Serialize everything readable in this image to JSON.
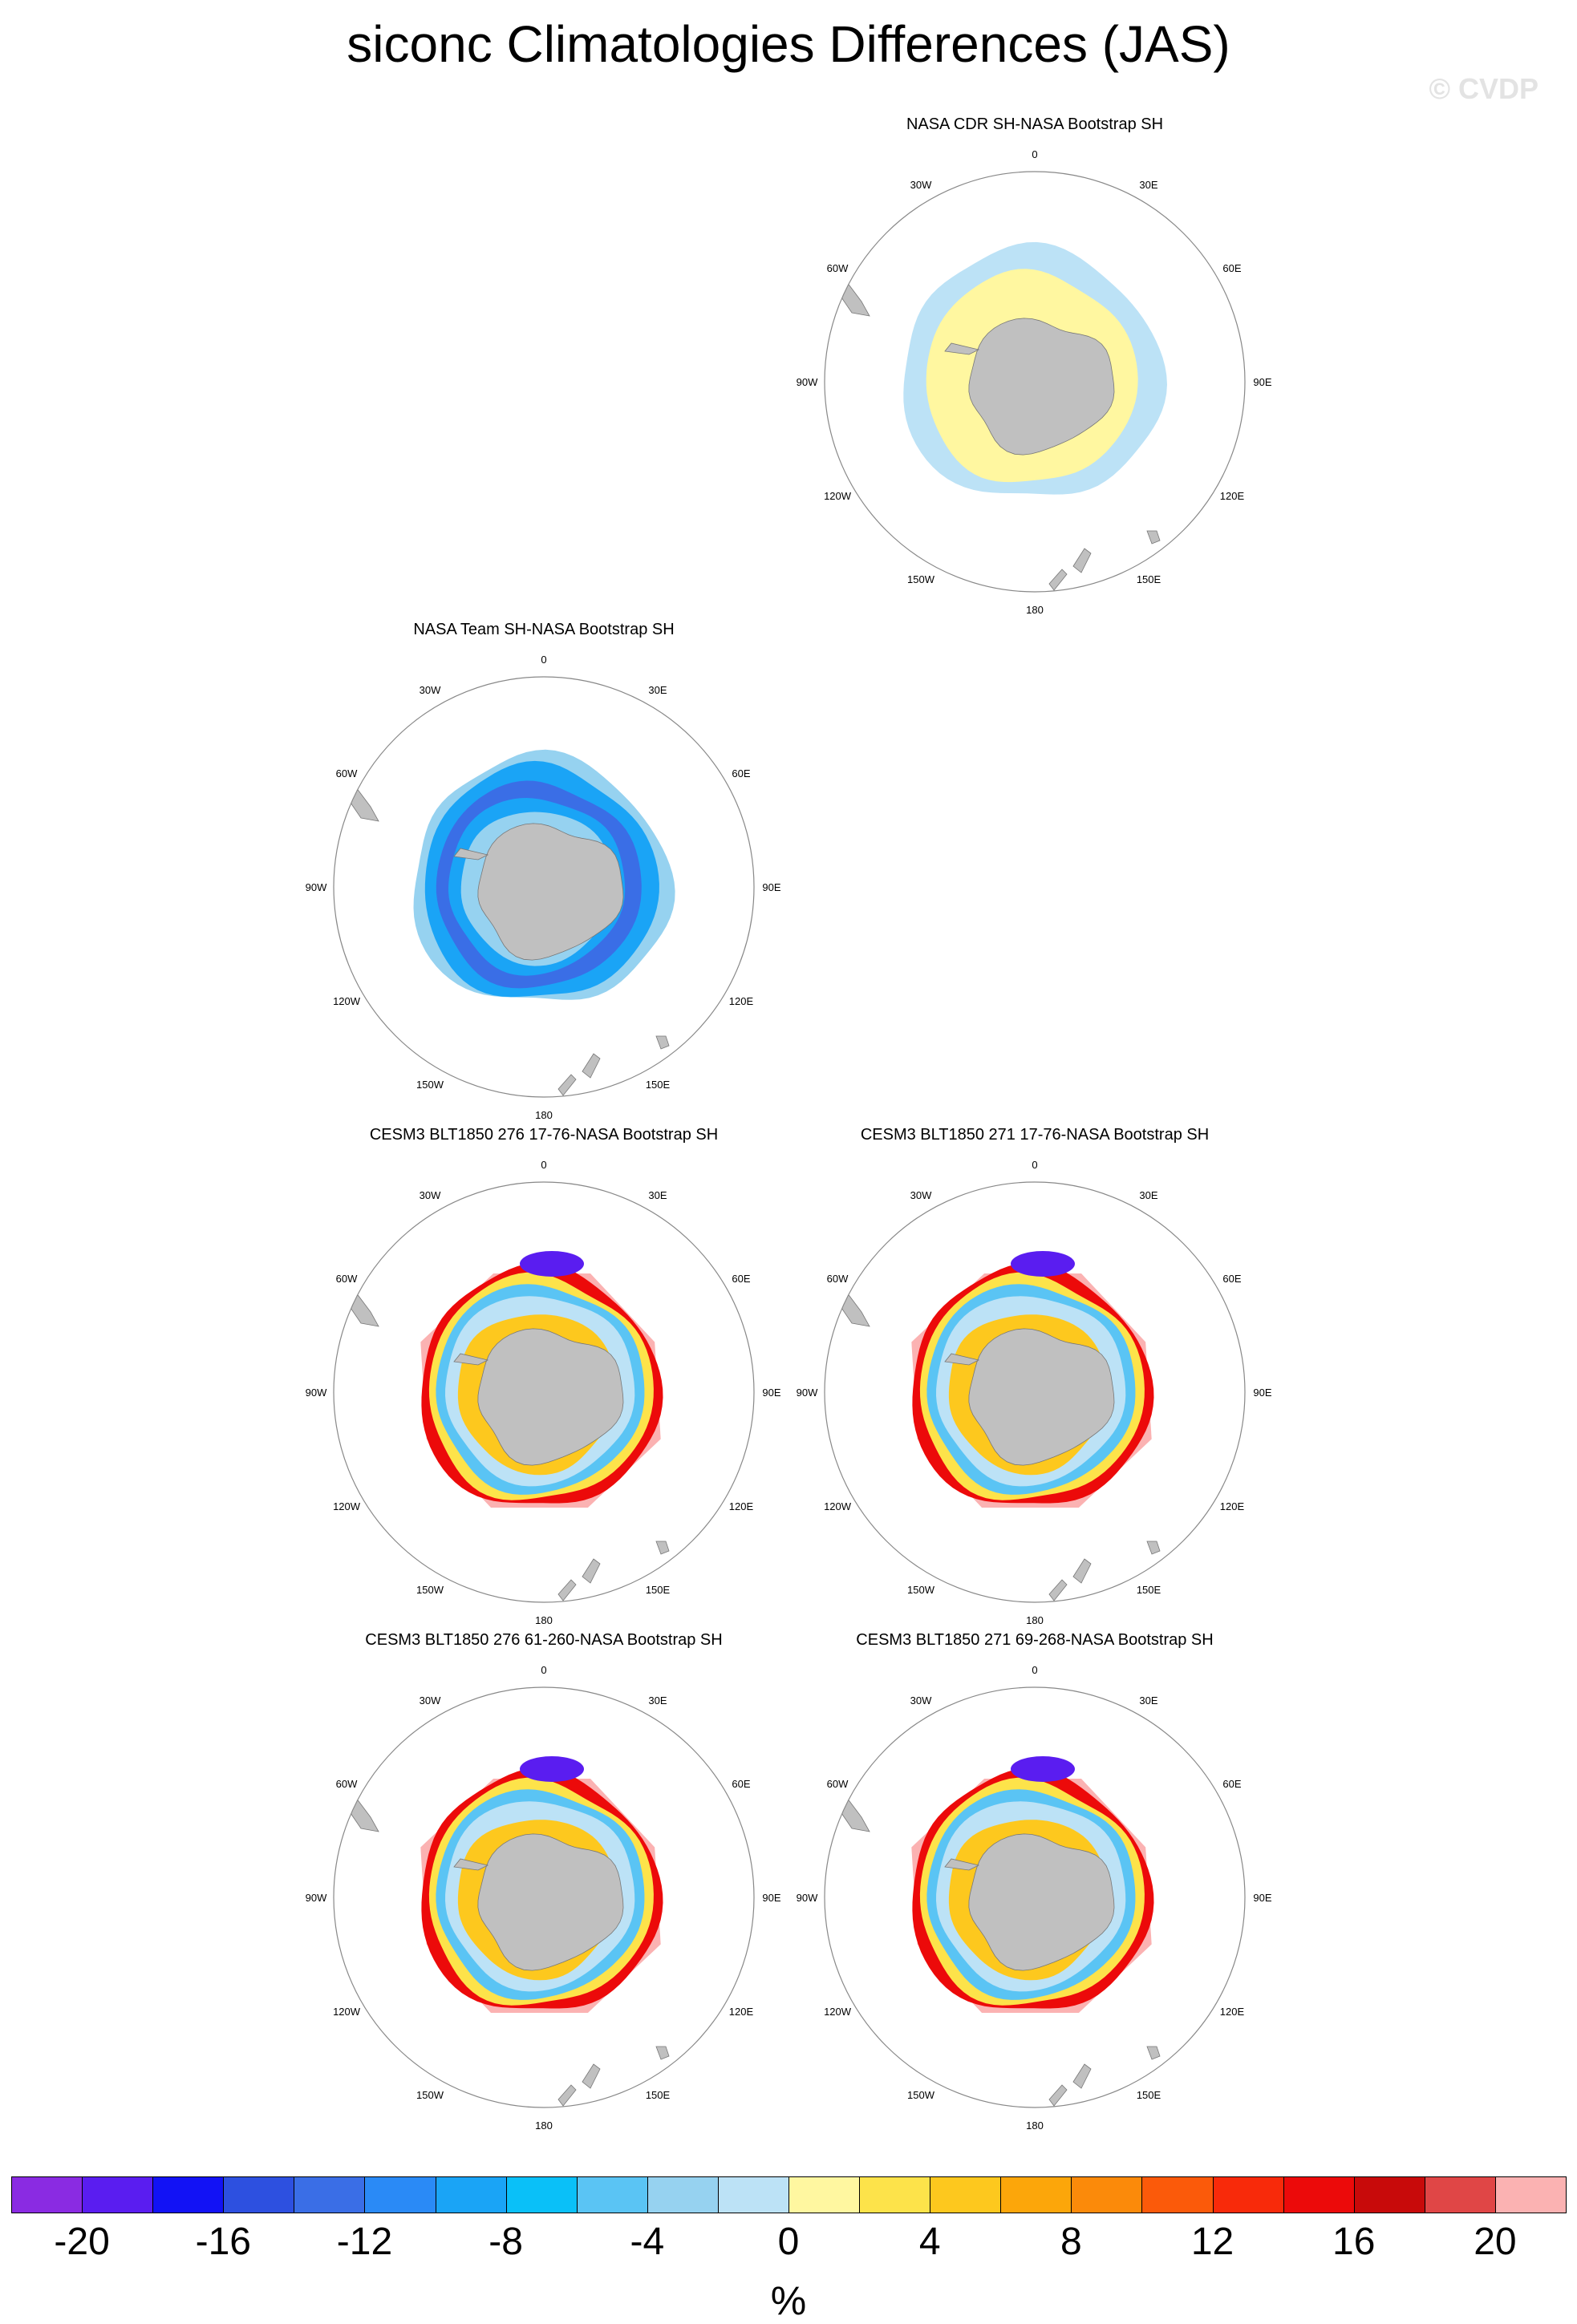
{
  "title": "siconc Climatologies Differences (JAS)",
  "watermark": "© CVDP",
  "lon_labels": {
    "0": "0",
    "30E": "30E",
    "60E": "60E",
    "90E": "90E",
    "120E": "120E",
    "150E": "150E",
    "180": "180",
    "150W": "150W",
    "120W": "120W",
    "90W": "90W",
    "60W": "60W",
    "30W": "30W"
  },
  "panels": [
    {
      "title": "NASA CDR SH-NASA Bootstrap SH",
      "pattern": "cdr"
    },
    {
      "title": "NASA Team SH-NASA Bootstrap SH",
      "pattern": "team"
    },
    {
      "title": "CESM3 BLT1850 276 17-76-NASA Bootstrap SH",
      "pattern": "model"
    },
    {
      "title": "CESM3 BLT1850 271 17-76-NASA Bootstrap SH",
      "pattern": "model"
    },
    {
      "title": "CESM3 BLT1850 276 61-260-NASA Bootstrap SH",
      "pattern": "model"
    },
    {
      "title": "CESM3 BLT1850 271 69-268-NASA Bootstrap SH",
      "pattern": "model"
    }
  ],
  "colorbar": {
    "units": "%",
    "colors": [
      "#8a2be2",
      "#5a1df0",
      "#1212f5",
      "#2d50e0",
      "#3a6ee6",
      "#2a8af6",
      "#1aa4f6",
      "#0ac0f8",
      "#5ac4f4",
      "#96d2f0",
      "#bce2f6",
      "#fff7a0",
      "#fde34a",
      "#fdc81e",
      "#fca60a",
      "#fb8a0a",
      "#fb5a0a",
      "#f82a0a",
      "#ec0a0a",
      "#c80a0a",
      "#e04646",
      "#fbb2b2"
    ],
    "tick_labels": [
      "-20",
      "-16",
      "-12",
      "-8",
      "-4",
      "0",
      "4",
      "8",
      "12",
      "16",
      "20"
    ]
  },
  "land_color": "#c0c0c0"
}
